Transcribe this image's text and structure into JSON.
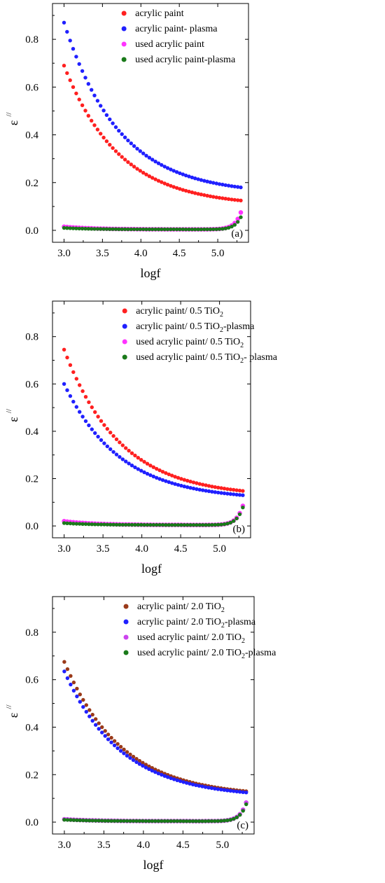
{
  "chart_data": [
    {
      "type": "scatter",
      "panel_label": "(a)",
      "xlabel": "logf",
      "ylabel": "ε",
      "ylabel_superscript": "//",
      "xlim": [
        2.85,
        5.4
      ],
      "ylim": [
        -0.05,
        0.95
      ],
      "x_ticks": [
        "3.0",
        "3.5",
        "4.0",
        "4.5",
        "5.0"
      ],
      "y_ticks": [
        "0.0",
        "0.2",
        "0.4",
        "0.6",
        "0.8"
      ],
      "legend_position": "top-right",
      "series": [
        {
          "name": "acrylic paint",
          "name_sub": "",
          "name_tail": "",
          "color": "#ff2020",
          "y_start": 0.69,
          "y_end": 0.125,
          "shape": "decay"
        },
        {
          "name": "acrylic paint- plasma",
          "name_sub": "",
          "name_tail": "",
          "color": "#2020ff",
          "y_start": 0.87,
          "y_end": 0.18,
          "shape": "decay"
        },
        {
          "name": "used acrylic paint",
          "name_sub": "",
          "name_tail": "",
          "color": "#ff33ff",
          "y_start": 0.015,
          "y_end": 0.075,
          "shape": "flat-rise"
        },
        {
          "name": "used acrylic paint-plasma",
          "name_sub": "",
          "name_tail": "",
          "color": "#1a7a1a",
          "y_start": 0.01,
          "y_end": 0.055,
          "shape": "flat-rise"
        }
      ]
    },
    {
      "type": "scatter",
      "panel_label": "(b)",
      "xlabel": "logf",
      "ylabel": "ε",
      "ylabel_superscript": "//",
      "xlim": [
        2.85,
        5.4
      ],
      "ylim": [
        -0.05,
        0.95
      ],
      "x_ticks": [
        "3.0",
        "3.5",
        "4.0",
        "4.5",
        "5.0"
      ],
      "y_ticks": [
        "0.0",
        "0.2",
        "0.4",
        "0.6",
        "0.8"
      ],
      "legend_position": "top-right",
      "series": [
        {
          "name": "acrylic paint/ 0.5 TiO",
          "name_sub": "2",
          "name_tail": "",
          "color": "#ff2020",
          "y_start": 0.745,
          "y_end": 0.148,
          "shape": "decay"
        },
        {
          "name": "acrylic paint/ 0.5 TiO",
          "name_sub": "2",
          "name_tail": "-plasma",
          "color": "#2020ff",
          "y_start": 0.6,
          "y_end": 0.13,
          "shape": "decay"
        },
        {
          "name": "used acrylic paint/ 0.5 TiO",
          "name_sub": "2",
          "name_tail": "",
          "color": "#ff33ff",
          "y_start": 0.02,
          "y_end": 0.085,
          "shape": "flat-rise"
        },
        {
          "name": "used acrylic paint/ 0.5 TiO",
          "name_sub": "2",
          "name_tail": "- plasma",
          "color": "#1a7a1a",
          "y_start": 0.012,
          "y_end": 0.078,
          "shape": "flat-rise"
        }
      ]
    },
    {
      "type": "scatter",
      "panel_label": "(c)",
      "xlabel": "logf",
      "ylabel": "ε",
      "ylabel_superscript": "//",
      "xlim": [
        2.85,
        5.4
      ],
      "ylim": [
        -0.05,
        0.95
      ],
      "x_ticks": [
        "3.0",
        "3.5",
        "4.0",
        "4.5",
        "5.0"
      ],
      "y_ticks": [
        "0.0",
        "0.2",
        "0.4",
        "0.6",
        "0.8"
      ],
      "legend_position": "top-right",
      "series": [
        {
          "name": "acrylic paint/ 2.0 TiO",
          "name_sub": "2",
          "name_tail": "",
          "color": "#9a3a1a",
          "y_start": 0.675,
          "y_end": 0.13,
          "shape": "decay"
        },
        {
          "name": "acrylic paint/ 2.0 TiO",
          "name_sub": "2",
          "name_tail": "-plasma",
          "color": "#2020ff",
          "y_start": 0.635,
          "y_end": 0.125,
          "shape": "decay"
        },
        {
          "name": "used acrylic paint/ 2.0 TiO",
          "name_sub": "2",
          "name_tail": "",
          "color": "#cc44ee",
          "y_start": 0.012,
          "y_end": 0.082,
          "shape": "flat-rise"
        },
        {
          "name": "used acrylic paint/ 2.0 TiO",
          "name_sub": "2",
          "name_tail": "-plasma",
          "color": "#1a7a1a",
          "y_start": 0.01,
          "y_end": 0.075,
          "shape": "flat-rise"
        }
      ]
    }
  ]
}
